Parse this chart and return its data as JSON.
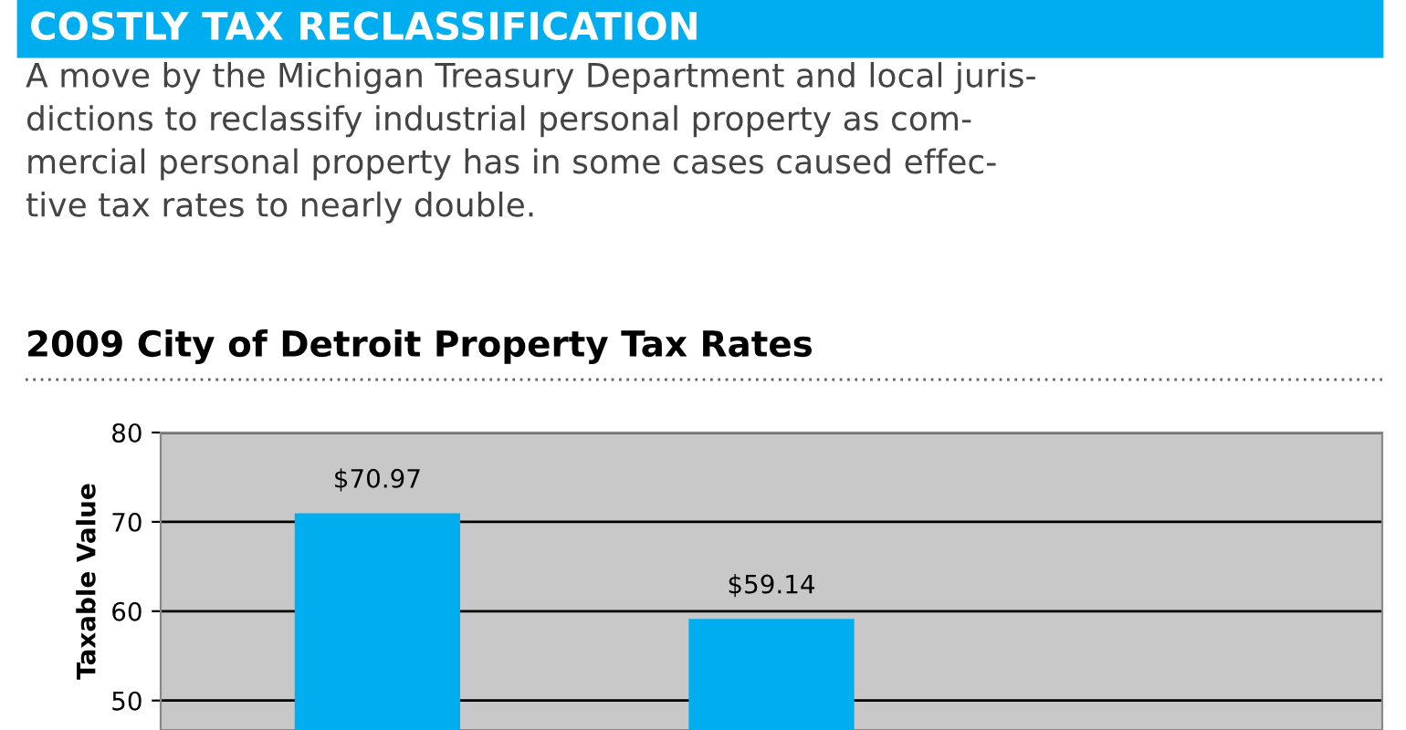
{
  "chart_data": {
    "type": "bar",
    "title": "COSTLY TAX RECLASSIFICATION",
    "subtitle": "A move by the Michigan Treasury Department and local juris-\ndictions to reclassify industrial personal property as com-\nmercial personal property has in some cases caused effec-\ntive tax rates to nearly double.",
    "annotations": [
      "2009 City of Detroit Property Tax Rates"
    ],
    "ylabel": "Taxable Value",
    "categories": [
      null,
      null,
      null
    ],
    "values": [
      70.97,
      59.14,
      null
    ],
    "value_labels": [
      "$70.97",
      "$59.14",
      null
    ],
    "color": "#00aeef",
    "ylim": [
      46.7,
      80
    ],
    "yticks": [
      50,
      60,
      70,
      80
    ],
    "grid": "y"
  }
}
